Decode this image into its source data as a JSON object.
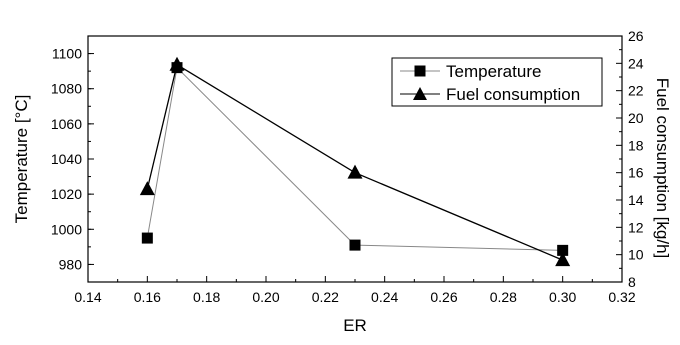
{
  "chart_data": {
    "type": "line",
    "title": "",
    "xlabel": "ER",
    "ylabel": "Temperature [°C]",
    "y2label": "Fuel consumption [kg/h]",
    "xlim": [
      0.14,
      0.32
    ],
    "ylim": [
      970,
      1110
    ],
    "y2lim": [
      8,
      26
    ],
    "x_ticks": [
      "0.14",
      "0.16",
      "0.18",
      "0.20",
      "0.22",
      "0.24",
      "0.26",
      "0.28",
      "0.30",
      "0.32"
    ],
    "y_ticks": [
      "980",
      "1000",
      "1020",
      "1040",
      "1060",
      "1080",
      "1100"
    ],
    "y2_ticks": [
      "8",
      "10",
      "12",
      "14",
      "16",
      "18",
      "20",
      "22",
      "24",
      "26"
    ],
    "grid": false,
    "legend_position": "top-right",
    "series": [
      {
        "name": "Temperature",
        "axis": "left",
        "marker": "square",
        "line_color": "#888888",
        "x": [
          0.16,
          0.17,
          0.23,
          0.3
        ],
        "y": [
          995,
          1092,
          991,
          988
        ]
      },
      {
        "name": "Fuel consumption",
        "axis": "right",
        "marker": "triangle",
        "line_color": "#000000",
        "x": [
          0.16,
          0.17,
          0.23,
          0.3
        ],
        "y": [
          14.8,
          23.9,
          16.0,
          9.6
        ]
      }
    ]
  }
}
